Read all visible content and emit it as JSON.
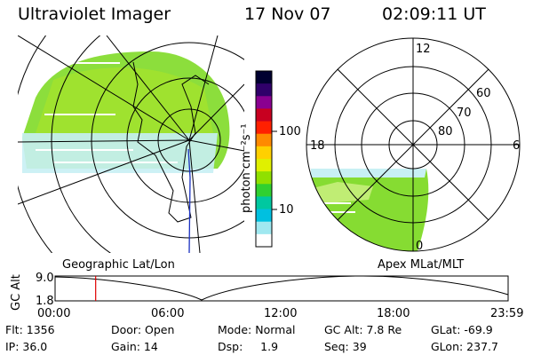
{
  "header": {
    "title": "Ultraviolet Imager",
    "date": "17 Nov 07",
    "time": "02:09:11 UT"
  },
  "left_map": {
    "label": "Geographic Lat/Lon"
  },
  "right_map": {
    "label": "Apex MLat/MLT",
    "mlt_labels": [
      "12",
      "18",
      "6",
      "0"
    ],
    "mlat_labels": [
      "60",
      "70",
      "80"
    ]
  },
  "colorbar": {
    "unit": "photon cm⁻²s⁻¹",
    "ticks": [
      "100",
      "10"
    ],
    "colors": [
      "#000030",
      "#30006a",
      "#8a0090",
      "#c80020",
      "#ff2000",
      "#ff8a00",
      "#ffd000",
      "#e0f000",
      "#90e000",
      "#30d030",
      "#00c8a0",
      "#00c0e0",
      "#a0e8f0",
      "#ffffff"
    ]
  },
  "timeline": {
    "ylabel": "GC Alt",
    "yticks": [
      "9.0",
      "1.8"
    ],
    "xticks": [
      "00:00",
      "06:00",
      "12:00",
      "18:00",
      "23:59"
    ],
    "marker_time_hours": 2.15
  },
  "info": {
    "row1": [
      "Flt: 1356",
      "Door: Open",
      "Mode: Normal",
      "GC Alt: 7.8 Re",
      "GLat: -69.9"
    ],
    "row2": [
      "IP: 36.0",
      "Gain: 14",
      "Dsp:     1.9",
      "Seq: 39",
      "GLon: 237.7"
    ]
  }
}
